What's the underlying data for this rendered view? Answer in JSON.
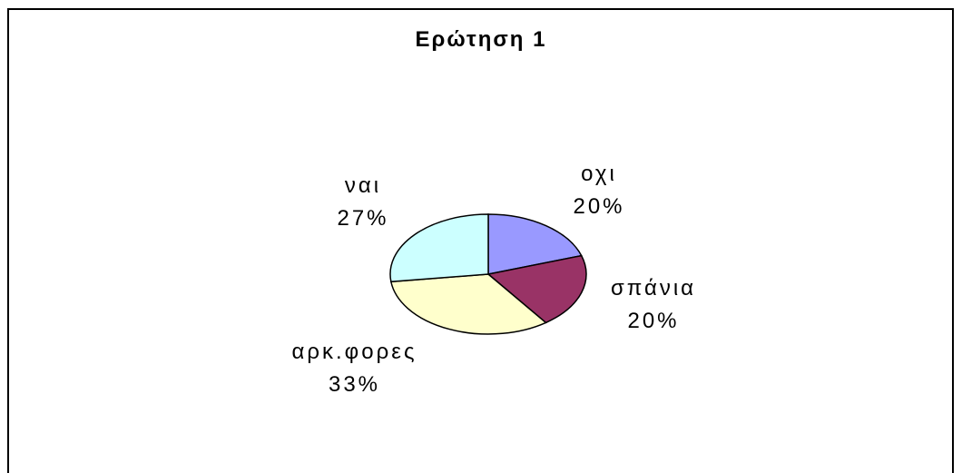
{
  "chart_data": {
    "type": "pie",
    "title": "Ερώτηση 1",
    "categories": [
      "οχι",
      "σπάνια",
      "αρκ.φορες",
      "ναι"
    ],
    "values": [
      20,
      20,
      33,
      27
    ],
    "value_labels": [
      "20%",
      "20%",
      "33%",
      "27%"
    ],
    "colors": [
      "#9999ff",
      "#993366",
      "#ffffcc",
      "#ccffff"
    ]
  }
}
